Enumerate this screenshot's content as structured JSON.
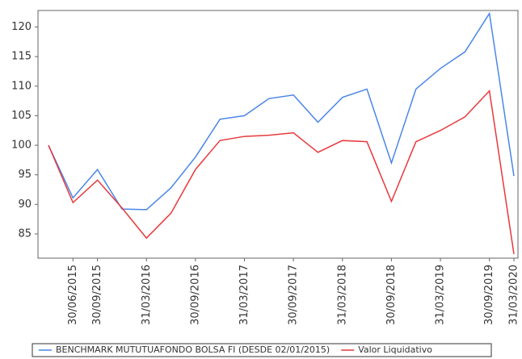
{
  "chart_data": {
    "type": "line",
    "categories": [
      null,
      "30/06/2015",
      "30/09/2015",
      null,
      "31/03/2016",
      null,
      "30/09/2016",
      null,
      "31/03/2017",
      null,
      "30/09/2017",
      null,
      "31/03/2018",
      null,
      "30/09/2018",
      null,
      "31/03/2019",
      null,
      "30/09/2019",
      "31/03/2020"
    ],
    "series": [
      {
        "name": "BENCHMARK MUTUTUAFONDO BOLSA FI (DESDE 02/01/2015)",
        "color": "#4a86e8",
        "values": [
          100,
          91.1,
          95.9,
          89.2,
          89.1,
          92.8,
          98.0,
          104.4,
          105.0,
          107.9,
          108.5,
          103.9,
          108.1,
          109.5,
          97.0,
          109.5,
          113.0,
          115.8,
          122.3,
          94.8
        ]
      },
      {
        "name": "Valor Liquidativo",
        "color": "#e8393c",
        "values": [
          100,
          90.3,
          94.1,
          89.4,
          84.3,
          88.5,
          95.9,
          100.8,
          101.5,
          101.7,
          102.1,
          98.8,
          100.8,
          100.6,
          90.5,
          100.6,
          102.5,
          104.8,
          109.2,
          81.6
        ]
      }
    ],
    "ylim": [
      80.9,
      122.8
    ],
    "yticks": [
      85,
      90,
      95,
      100,
      105,
      110,
      115,
      120
    ]
  }
}
